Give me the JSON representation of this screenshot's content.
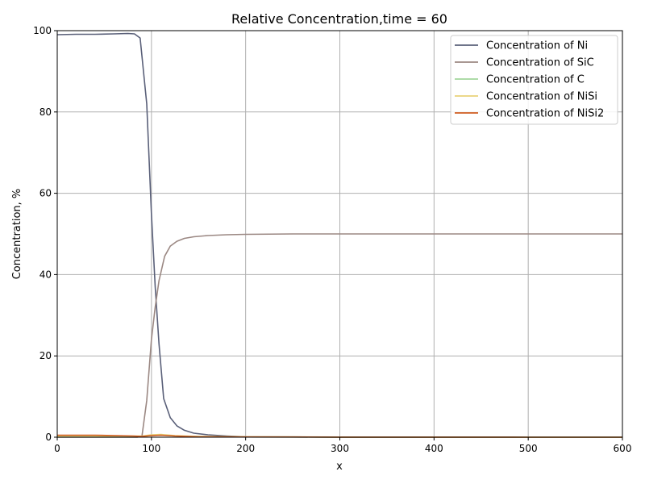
{
  "chart_data": {
    "type": "line",
    "title": "Relative Concentration,time = 60",
    "xlabel": "x",
    "ylabel": "Concentration, %",
    "xlim": [
      0,
      600
    ],
    "ylim": [
      0,
      100
    ],
    "xticks": [
      0,
      100,
      200,
      300,
      400,
      500,
      600
    ],
    "yticks": [
      0,
      20,
      40,
      60,
      80,
      100
    ],
    "grid": true,
    "legend_position": "top-right",
    "series": [
      {
        "name": "Concentration of Ni",
        "color": "#5a6079",
        "x": [
          0,
          20,
          40,
          60,
          75,
          82,
          88,
          95,
          100,
          104,
          108,
          113,
          120,
          127,
          135,
          145,
          160,
          180,
          200,
          250,
          300,
          400,
          500,
          600
        ],
        "y": [
          99.0,
          99.1,
          99.1,
          99.2,
          99.3,
          99.2,
          98.2,
          82.0,
          55.0,
          37.0,
          23.0,
          9.5,
          4.8,
          2.8,
          1.7,
          1.0,
          0.6,
          0.3,
          0.1,
          0.05,
          0.02,
          0.01,
          0.0,
          0.0
        ]
      },
      {
        "name": "Concentration of SiC",
        "color": "#9b8883",
        "x": [
          0,
          50,
          85,
          90,
          95,
          100,
          104,
          108,
          114,
          120,
          127,
          135,
          145,
          160,
          180,
          200,
          250,
          300,
          400,
          500,
          600
        ],
        "y": [
          0.0,
          0.0,
          0.0,
          0.3,
          9.0,
          24.0,
          32.0,
          38.5,
          44.5,
          47.0,
          48.2,
          48.9,
          49.3,
          49.6,
          49.8,
          49.9,
          50.0,
          50.0,
          50.0,
          50.0,
          50.0
        ]
      },
      {
        "name": "Concentration of C",
        "color": "#a3d69b",
        "x": [
          0,
          50,
          90,
          100,
          110,
          125,
          150,
          200,
          300,
          400,
          500,
          600
        ],
        "y": [
          0.1,
          0.1,
          0.2,
          0.4,
          0.5,
          0.3,
          0.15,
          0.05,
          0.02,
          0.01,
          0.0,
          0.0
        ]
      },
      {
        "name": "Concentration of NiSi",
        "color": "#e9d37a",
        "x": [
          0,
          50,
          90,
          100,
          110,
          125,
          150,
          200,
          300,
          400,
          500,
          600
        ],
        "y": [
          0.3,
          0.3,
          0.3,
          0.6,
          0.7,
          0.4,
          0.2,
          0.08,
          0.03,
          0.01,
          0.0,
          0.0
        ]
      },
      {
        "name": "Concentration of NiSi2",
        "color": "#cf5b1f",
        "x": [
          0,
          40,
          80,
          90,
          100,
          110,
          125,
          150,
          200,
          300,
          400,
          500,
          600
        ],
        "y": [
          0.5,
          0.5,
          0.3,
          0.2,
          0.4,
          0.5,
          0.3,
          0.1,
          0.05,
          0.02,
          0.01,
          0.0,
          0.0
        ]
      }
    ]
  }
}
